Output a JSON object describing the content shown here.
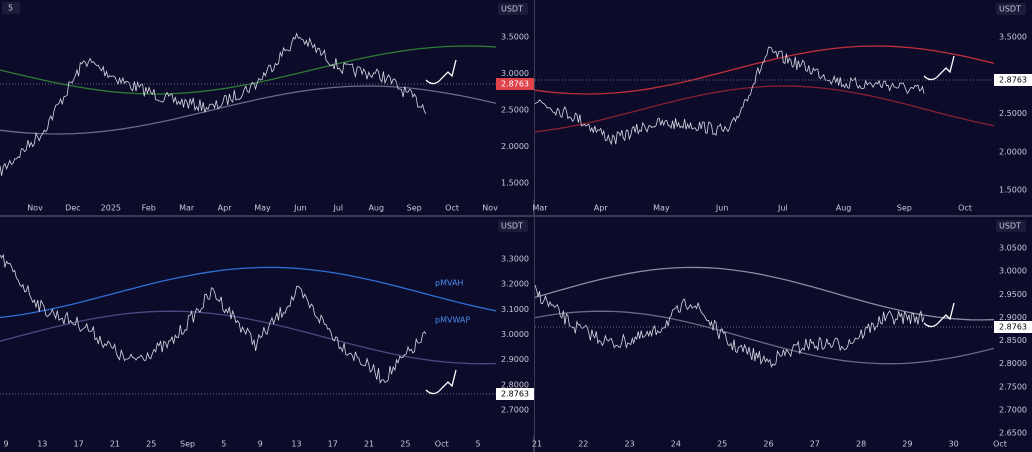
{
  "panes": [
    {
      "interval": "5",
      "currency": "USDT",
      "price_labels": [
        "3.5000",
        "3.0000",
        "2.5000",
        "2.0000",
        "1.5000"
      ],
      "current_price": "2.8763",
      "time_labels": [
        "Nov",
        "Dec",
        "2025",
        "Feb",
        "Mar",
        "Apr",
        "May",
        "Jun",
        "Jul",
        "Aug",
        "Sep",
        "Oct",
        "Nov"
      ]
    },
    {
      "currency": "USDT",
      "price_labels": [
        "3.5000",
        "3.0000",
        "2.5000",
        "2.0000",
        "1.5000"
      ],
      "current_price": "2.8763",
      "time_labels": [
        "Mar",
        "Apr",
        "May",
        "Jun",
        "Jul",
        "Aug",
        "Sep",
        "Oct"
      ]
    },
    {
      "currency": "USDT",
      "price_labels": [
        "3.3000",
        "3.2000",
        "3.1000",
        "3.0000",
        "2.9000",
        "2.8000",
        "2.7000"
      ],
      "current_price": "2.8763",
      "time_labels": [
        "9",
        "13",
        "17",
        "21",
        "25",
        "Sep",
        "5",
        "9",
        "13",
        "17",
        "21",
        "25",
        "Oct",
        "5"
      ],
      "annotations": [
        "pMVAH",
        "pMVWAP"
      ]
    },
    {
      "currency": "USDT",
      "price_labels": [
        "3.0500",
        "3.0000",
        "2.9500",
        "2.9000",
        "2.8500",
        "2.8000",
        "2.7500",
        "2.7000",
        "2.6500"
      ],
      "current_price": "2.8763",
      "time_labels": [
        "21",
        "22",
        "23",
        "24",
        "25",
        "26",
        "27",
        "28",
        "29",
        "30",
        "Oct"
      ]
    }
  ]
}
